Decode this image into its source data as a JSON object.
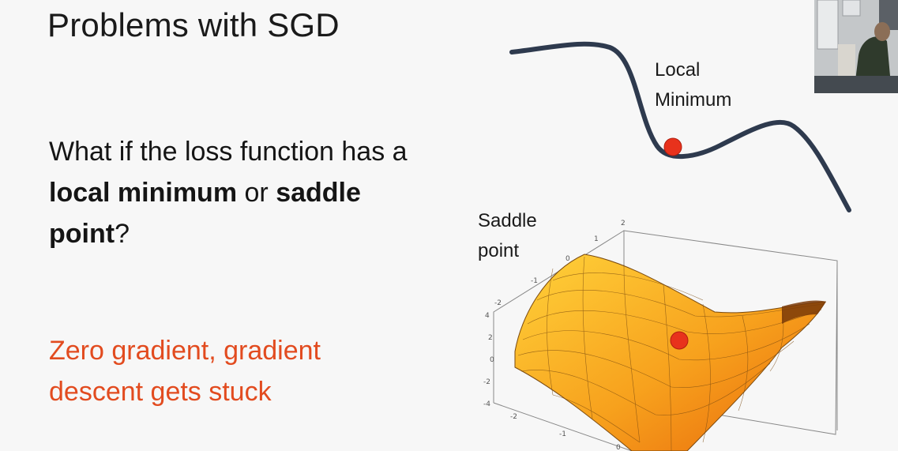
{
  "slide": {
    "title": "Problems with SGD",
    "question": {
      "part1": "What if the loss function has a ",
      "bold1": "local minimum",
      "part2": " or ",
      "bold2": "saddle point",
      "part3": "?"
    },
    "answer": "Zero gradient, gradient descent gets stuck"
  },
  "figures": {
    "local_minimum_label": "Local Minimum",
    "saddle_point_label": "Saddle point",
    "saddle_ticks": {
      "vertical": [
        "4",
        "2",
        "0",
        "-2",
        "-4"
      ],
      "back": [
        "2",
        "1",
        "0",
        "-1",
        "-2"
      ],
      "front": [
        "-2",
        "-1",
        "0"
      ]
    }
  },
  "colors": {
    "title_text": "#1a1a1a",
    "answer_text": "#e24b1f",
    "curve": "#2e3a4e",
    "marker": "#e8321c",
    "surface_light": "#ffd23a",
    "surface_dark": "#e8670a"
  }
}
